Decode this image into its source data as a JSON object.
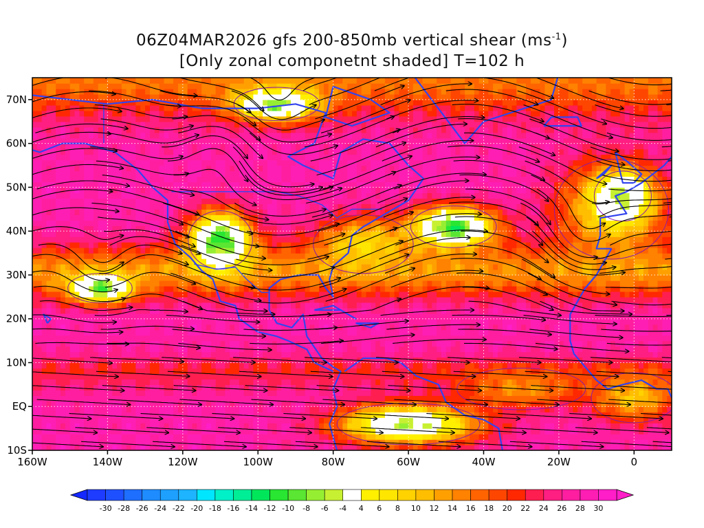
{
  "title": {
    "line1_main": "06Z04MAR2026 gfs 200-850mb vertical shear (ms",
    "line1_sup": "-1",
    "line1_end": ")",
    "line2": "[Only zonal componetnt shaded] T=102 h"
  },
  "map": {
    "lon_range": [
      -160,
      10
    ],
    "lat_range": [
      -10,
      75
    ],
    "lon_ticks": [
      {
        "value": -160,
        "label": "160W"
      },
      {
        "value": -140,
        "label": "140W"
      },
      {
        "value": -120,
        "label": "120W"
      },
      {
        "value": -100,
        "label": "100W"
      },
      {
        "value": -80,
        "label": "80W"
      },
      {
        "value": -60,
        "label": "60W"
      },
      {
        "value": -40,
        "label": "40W"
      },
      {
        "value": -20,
        "label": "20W"
      },
      {
        "value": 0,
        "label": "0"
      }
    ],
    "lat_ticks": [
      {
        "value": 70,
        "label": "70N"
      },
      {
        "value": 60,
        "label": "60N"
      },
      {
        "value": 50,
        "label": "50N"
      },
      {
        "value": 40,
        "label": "40N"
      },
      {
        "value": 30,
        "label": "30N"
      },
      {
        "value": 20,
        "label": "20N"
      },
      {
        "value": 10,
        "label": "10N"
      },
      {
        "value": 0,
        "label": "EQ"
      },
      {
        "value": -10,
        "label": "10S"
      }
    ],
    "grid": true,
    "coastline_color": "#3344ee",
    "streamline_color": "#000000",
    "contour_color": "#8a1aa8",
    "shear_regions": [
      {
        "kind": "background",
        "value": 28
      },
      {
        "kind": "band",
        "lat_center": 75,
        "width": 9,
        "value": 16
      },
      {
        "kind": "band",
        "lat_center": 31,
        "width": 6,
        "value": 14
      },
      {
        "kind": "band",
        "lat_center": 8,
        "width": 4,
        "value": 22
      },
      {
        "kind": "blob",
        "lon": -142,
        "lat": 27,
        "rlon": 9,
        "rlat": 3.5,
        "value": -10
      },
      {
        "kind": "blob",
        "lon": -110,
        "lat": 38,
        "rlon": 9,
        "rlat": 7,
        "value": -12
      },
      {
        "kind": "blob",
        "lon": -72,
        "lat": 37,
        "rlon": 14,
        "rlat": 7,
        "value": 8
      },
      {
        "kind": "blob",
        "lon": -48,
        "lat": 41,
        "rlon": 12,
        "rlat": 5,
        "value": -12
      },
      {
        "kind": "blob",
        "lon": -6,
        "lat": 45,
        "rlon": 16,
        "rlat": 12,
        "value": 8
      },
      {
        "kind": "blob",
        "lon": -3,
        "lat": 48,
        "rlon": 8,
        "rlat": 6,
        "value": -6
      },
      {
        "kind": "blob",
        "lon": -95,
        "lat": 69,
        "rlon": 12,
        "rlat": 4,
        "value": -8
      },
      {
        "kind": "blob",
        "lon": -60,
        "lat": -4,
        "rlon": 20,
        "rlat": 5,
        "value": -6
      },
      {
        "kind": "blob",
        "lon": -30,
        "lat": 4,
        "rlon": 18,
        "rlat": 5,
        "value": 14
      },
      {
        "kind": "blob",
        "lon": 0,
        "lat": 2,
        "rlon": 12,
        "rlat": 6,
        "value": 10
      }
    ]
  },
  "colorbar": {
    "tick_labels": [
      "-30",
      "-28",
      "-26",
      "-24",
      "-22",
      "-20",
      "-18",
      "-16",
      "-14",
      "-12",
      "-10",
      "-8",
      "-6",
      "-4",
      "4",
      "6",
      "8",
      "10",
      "12",
      "14",
      "16",
      "18",
      "20",
      "22",
      "24",
      "26",
      "28",
      "30"
    ],
    "colors": [
      "#1e3cff",
      "#1e50ff",
      "#1e6eff",
      "#1e8cff",
      "#1ea0ff",
      "#1eb4ff",
      "#00e6ff",
      "#00f0c8",
      "#00ee96",
      "#00e65a",
      "#28e632",
      "#5ae632",
      "#96ee32",
      "#c8f032",
      "#ffffff",
      "#fff000",
      "#ffe600",
      "#ffd200",
      "#ffbe00",
      "#ffa000",
      "#ff8200",
      "#ff6400",
      "#ff4600",
      "#ff2800",
      "#ff1e50",
      "#ff1e82",
      "#ff1ea0",
      "#ff1eb4",
      "#ff1ec8"
    ],
    "under_color": "#1428ff",
    "over_color": "#ff1ec8"
  }
}
